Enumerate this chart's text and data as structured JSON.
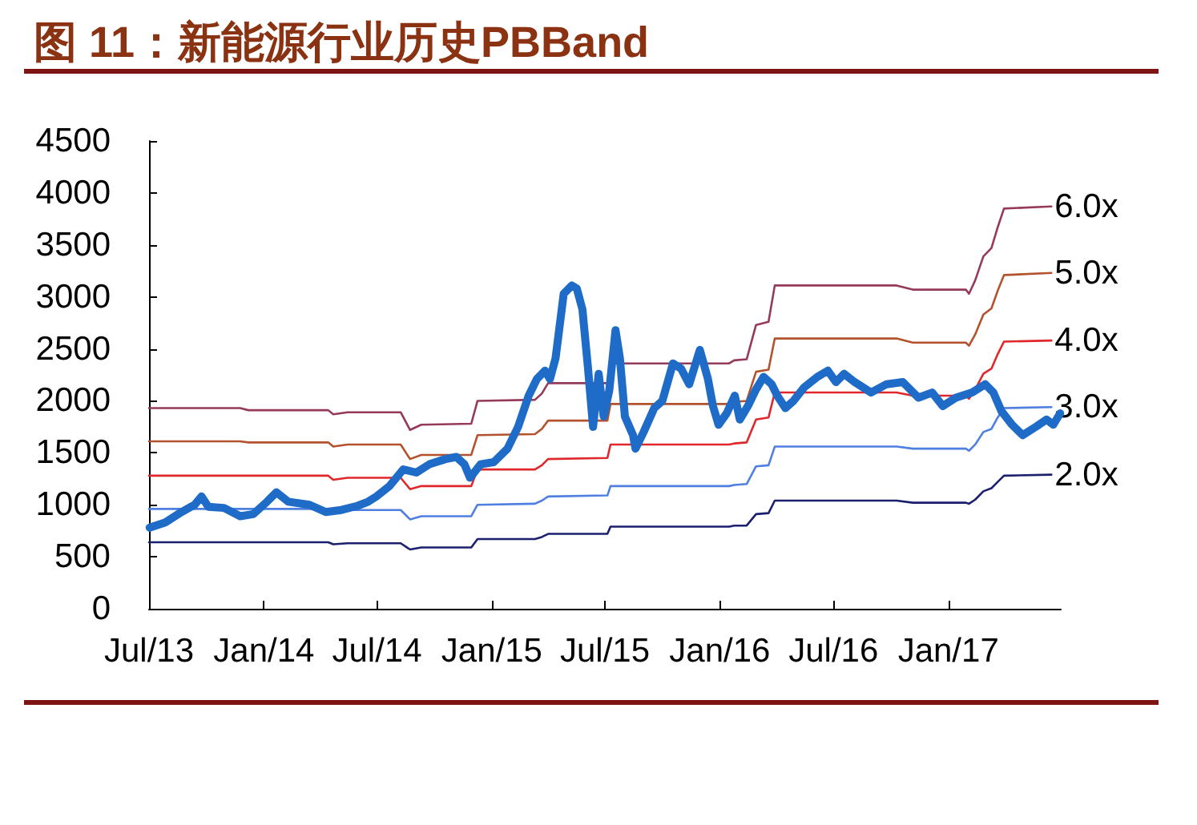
{
  "chart_data": {
    "type": "line",
    "title": "图 11：新能源行业历史PBBand",
    "x": [
      "2013-07-01",
      "2013-11-24",
      "2013-12-07",
      "2014-04-14",
      "2014-04-22",
      "2014-05-15",
      "2014-08-08",
      "2014-08-23",
      "2014-09-10",
      "2014-11-29",
      "2014-12-09",
      "2015-03-11",
      "2015-03-22",
      "2015-04-01",
      "2015-07-05",
      "2015-07-10",
      "2016-01-16",
      "2016-01-24",
      "2016-02-13",
      "2016-02-28",
      "2016-03-19",
      "2016-03-29",
      "2016-10-10",
      "2016-11-05",
      "2017-01-29",
      "2017-02-03",
      "2017-02-13",
      "2017-02-26",
      "2017-03-11",
      "2017-03-21",
      "2017-03-31",
      "2017-06-15"
    ],
    "series": [
      {
        "name": "6.0x",
        "color": "#963a5c",
        "values": [
          1930,
          1930,
          1910,
          1910,
          1870,
          1890,
          1890,
          1720,
          1770,
          1780,
          2000,
          2010,
          2070,
          2170,
          2170,
          2360,
          2360,
          2390,
          2400,
          2730,
          2760,
          3110,
          3110,
          3070,
          3070,
          3030,
          3160,
          3390,
          3470,
          3670,
          3850,
          3870
        ]
      },
      {
        "name": "5.0x",
        "color": "#b4522e",
        "values": [
          1610,
          1610,
          1600,
          1600,
          1560,
          1580,
          1580,
          1440,
          1480,
          1480,
          1670,
          1680,
          1730,
          1810,
          1810,
          1970,
          1970,
          1990,
          2000,
          2280,
          2300,
          2600,
          2600,
          2560,
          2560,
          2530,
          2640,
          2830,
          2890,
          3060,
          3210,
          3230
        ]
      },
      {
        "name": "4.0x",
        "color": "#e0282c",
        "values": [
          1280,
          1280,
          1280,
          1280,
          1240,
          1260,
          1260,
          1150,
          1180,
          1180,
          1340,
          1340,
          1380,
          1440,
          1450,
          1580,
          1580,
          1590,
          1600,
          1820,
          1840,
          2080,
          2080,
          2050,
          2050,
          2020,
          2110,
          2260,
          2310,
          2450,
          2570,
          2580
        ]
      },
      {
        "name": "3.0x",
        "color": "#4f7fe0",
        "values": [
          960,
          960,
          960,
          960,
          930,
          950,
          950,
          860,
          890,
          890,
          1000,
          1010,
          1040,
          1080,
          1090,
          1180,
          1180,
          1190,
          1200,
          1370,
          1380,
          1560,
          1560,
          1540,
          1540,
          1520,
          1580,
          1700,
          1730,
          1840,
          1930,
          1940
        ]
      },
      {
        "name": "2.0x",
        "color": "#1a1f6e",
        "values": [
          640,
          640,
          640,
          640,
          620,
          630,
          630,
          570,
          590,
          590,
          670,
          670,
          690,
          720,
          720,
          790,
          790,
          800,
          800,
          910,
          920,
          1040,
          1040,
          1020,
          1020,
          1010,
          1050,
          1130,
          1160,
          1220,
          1280,
          1290
        ]
      },
      {
        "color": "#1e6bc8",
        "x": [
          "2013-07-02",
          "2013-07-27",
          "2013-08-22",
          "2013-09-12",
          "2013-09-23",
          "2013-10-04",
          "2013-10-29",
          "2013-11-24",
          "2013-12-15",
          "2014-01-06",
          "2014-01-21",
          "2014-02-09",
          "2014-03-15",
          "2014-04-10",
          "2014-05-05",
          "2014-05-31",
          "2014-06-17",
          "2014-06-30",
          "2014-07-21",
          "2014-08-12",
          "2014-09-02",
          "2014-09-23",
          "2014-10-19",
          "2014-11-05",
          "2014-11-18",
          "2014-11-27",
          "2014-12-14",
          "2015-01-04",
          "2015-01-26",
          "2015-02-12",
          "2015-03-01",
          "2015-03-14",
          "2015-03-27",
          "2015-04-04",
          "2015-04-13",
          "2015-04-26",
          "2015-05-09",
          "2015-05-17",
          "2015-05-26",
          "2015-06-04",
          "2015-06-12",
          "2015-06-21",
          "2015-06-29",
          "2015-07-08",
          "2015-07-18",
          "2015-07-25",
          "2015-08-02",
          "2015-08-15",
          "2015-08-19",
          "2015-09-01",
          "2015-09-18",
          "2015-10-01",
          "2015-10-18",
          "2015-10-31",
          "2015-11-13",
          "2015-11-30",
          "2015-12-13",
          "2015-12-21",
          "2015-12-30",
          "2016-01-12",
          "2016-01-25",
          "2016-02-02",
          "2016-02-15",
          "2016-02-28",
          "2016-03-11",
          "2016-03-24",
          "2016-04-02",
          "2016-04-15",
          "2016-04-28",
          "2016-05-15",
          "2016-06-05",
          "2016-06-22",
          "2016-07-05",
          "2016-07-18",
          "2016-08-04",
          "2016-08-30",
          "2016-09-24",
          "2016-10-20",
          "2016-11-14",
          "2016-12-06",
          "2016-12-23",
          "2017-01-13",
          "2017-02-08",
          "2017-03-01",
          "2017-03-14",
          "2017-03-27",
          "2017-04-13",
          "2017-04-30",
          "2017-05-21",
          "2017-06-07",
          "2017-06-18",
          "2017-06-29"
        ],
        "values": [
          780,
          830,
          930,
          1000,
          1080,
          980,
          970,
          890,
          910,
          1030,
          1120,
          1030,
          1000,
          930,
          950,
          990,
          1030,
          1080,
          1180,
          1340,
          1310,
          1390,
          1440,
          1460,
          1390,
          1260,
          1390,
          1410,
          1540,
          1750,
          2050,
          2210,
          2290,
          2210,
          2410,
          3030,
          3110,
          3080,
          2880,
          2310,
          1750,
          2260,
          1850,
          2100,
          2680,
          2410,
          1850,
          1670,
          1540,
          1700,
          1930,
          2000,
          2360,
          2310,
          2160,
          2490,
          2210,
          1950,
          1770,
          1880,
          2050,
          1820,
          1950,
          2110,
          2230,
          2160,
          2050,
          1930,
          2000,
          2130,
          2230,
          2290,
          2180,
          2260,
          2180,
          2080,
          2160,
          2180,
          2030,
          2080,
          1950,
          2030,
          2080,
          2160,
          2080,
          1900,
          1770,
          1670,
          1750,
          1820,
          1770,
          1880
        ]
      }
    ],
    "xlim": [
      "2013-07-01",
      "2017-06-30"
    ],
    "xticks": [
      {
        "value": "2013-07-01",
        "label": "Jul/13"
      },
      {
        "value": "2014-01-01",
        "label": "Jan/14"
      },
      {
        "value": "2014-07-01",
        "label": "Jul/14"
      },
      {
        "value": "2015-01-01",
        "label": "Jan/15"
      },
      {
        "value": "2015-07-01",
        "label": "Jul/15"
      },
      {
        "value": "2016-01-01",
        "label": "Jan/16"
      },
      {
        "value": "2016-07-01",
        "label": "Jul/16"
      },
      {
        "value": "2017-01-01",
        "label": "Jan/17"
      }
    ],
    "ylim": [
      0,
      4500
    ],
    "yticks": [
      0,
      500,
      1000,
      1500,
      2000,
      2500,
      3000,
      3500,
      4000,
      4500
    ],
    "grid": false,
    "legend": false,
    "marker": "none",
    "line_style": "solid"
  }
}
